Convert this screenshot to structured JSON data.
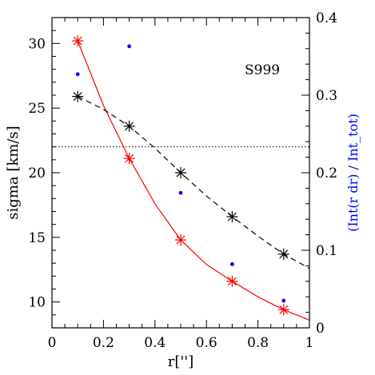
{
  "chart_data": {
    "type": "line",
    "annotation": "S999",
    "xlabel": "r['']",
    "ylabel": "sigma [km/s]",
    "ylabel_right": "(Int(r dr) / Int_tot)",
    "xlim": [
      0,
      1
    ],
    "ylim": [
      8,
      32
    ],
    "ylim_right": [
      0,
      0.4
    ],
    "x_ticks": [
      "0",
      "0.2",
      "0.4",
      "0.6",
      "0.8",
      "1"
    ],
    "y_ticks": [
      "10",
      "15",
      "20",
      "25",
      "30"
    ],
    "y_right_ticks": [
      "0",
      "0.1",
      "0.2",
      "0.3",
      "0.4"
    ],
    "reference_line": {
      "y": 22.0,
      "style": "dotted"
    },
    "colors": {
      "red": "#ff0000",
      "black": "#000000",
      "blue": "#0000ff"
    },
    "series": [
      {
        "axis": "left",
        "style": "solid",
        "color": "#ff0000",
        "marker": "star",
        "points": [
          [
            0.1,
            30.2
          ],
          [
            0.3,
            21.1
          ],
          [
            0.5,
            14.8
          ],
          [
            0.7,
            11.6
          ],
          [
            0.9,
            9.4
          ]
        ],
        "curve": [
          [
            0.1,
            30.2
          ],
          [
            0.2,
            25.2
          ],
          [
            0.3,
            21.1
          ],
          [
            0.4,
            17.6
          ],
          [
            0.5,
            14.8
          ],
          [
            0.6,
            12.9
          ],
          [
            0.7,
            11.6
          ],
          [
            0.8,
            10.4
          ],
          [
            0.9,
            9.4
          ],
          [
            1.0,
            8.6
          ]
        ]
      },
      {
        "axis": "left",
        "style": "dashed",
        "color": "#000000",
        "marker": "star",
        "points": [
          [
            0.1,
            25.9
          ],
          [
            0.3,
            23.6
          ],
          [
            0.5,
            20.0
          ],
          [
            0.7,
            16.6
          ],
          [
            0.9,
            13.7
          ]
        ],
        "curve": [
          [
            0.1,
            25.9
          ],
          [
            0.2,
            24.9
          ],
          [
            0.3,
            23.6
          ],
          [
            0.4,
            21.9
          ],
          [
            0.5,
            20.0
          ],
          [
            0.6,
            18.2
          ],
          [
            0.7,
            16.6
          ],
          [
            0.8,
            15.1
          ],
          [
            0.9,
            13.7
          ],
          [
            1.0,
            12.6
          ]
        ]
      },
      {
        "axis": "right",
        "style": "points",
        "color": "#0000ff",
        "marker": "dot",
        "points": [
          [
            0.1,
            0.327
          ],
          [
            0.3,
            0.363
          ],
          [
            0.5,
            0.174
          ],
          [
            0.7,
            0.082
          ],
          [
            0.9,
            0.035
          ]
        ]
      }
    ]
  }
}
